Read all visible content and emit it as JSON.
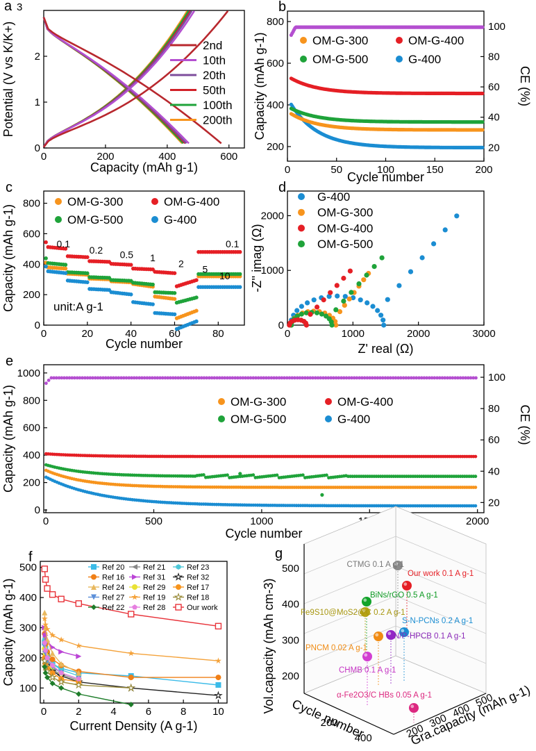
{
  "chart_data": [
    {
      "id": "a",
      "type": "line",
      "panel_label": "a",
      "xlabel": "Capacity (mAh g-1)",
      "ylabel": "Potential (V vs K/K+)",
      "xlim": [
        0,
        650
      ],
      "ylim": [
        0,
        3
      ],
      "xticks": [
        "0",
        "200",
        "400",
        "600"
      ],
      "yticks": [
        "0",
        "1",
        "2",
        "3"
      ],
      "series": [
        {
          "name": "2nd",
          "color": "#b8282e",
          "end_capacity": 575
        },
        {
          "name": "10th",
          "color": "#b44fd0",
          "end_capacity": 470
        },
        {
          "name": "20th",
          "color": "#7d4d9c",
          "end_capacity": 462
        },
        {
          "name": "50th",
          "color": "#d12027",
          "end_capacity": 458
        },
        {
          "name": "100th",
          "color": "#1fa33a",
          "end_capacity": 452
        },
        {
          "name": "200th",
          "color": "#f7941d",
          "end_capacity": 448
        }
      ]
    },
    {
      "id": "b",
      "type": "scatter",
      "panel_label": "b",
      "xlabel": "Cycle number",
      "ylabel": "Capacity (mAh g-1)",
      "y2label": "CE (%)",
      "xlim": [
        0,
        200
      ],
      "ylim": [
        130,
        850
      ],
      "y2lim": [
        11,
        110
      ],
      "xticks": [
        "0",
        "50",
        "100",
        "150",
        "200"
      ],
      "yticks": [
        "200",
        "400",
        "600",
        "800"
      ],
      "y2ticks": [
        "20",
        "40",
        "60",
        "80",
        "100"
      ],
      "series": [
        {
          "name": "OM-G-300",
          "color": "#f7941d",
          "start": 360,
          "end": 280
        },
        {
          "name": "OM-G-400",
          "color": "#e51f25",
          "start": 530,
          "end": 455
        },
        {
          "name": "OM-G-500",
          "color": "#1fa33a",
          "start": 385,
          "end": 318
        },
        {
          "name": "G-400",
          "color": "#1b8dd2",
          "start": 410,
          "end": 195
        },
        {
          "name": "CE",
          "color": "#b44fd0",
          "start": 93,
          "end": 100
        }
      ]
    },
    {
      "id": "c",
      "type": "scatter",
      "panel_label": "c",
      "xlabel": "Cycle number",
      "ylabel": "Capacity (mAh g-1)",
      "xlim": [
        0,
        92
      ],
      "ylim": [
        0,
        880
      ],
      "xticks": [
        "0",
        "20",
        "40",
        "60",
        "80"
      ],
      "yticks": [
        "0",
        "200",
        "400",
        "600",
        "800"
      ],
      "annotation": "unit:A g-1",
      "rates": [
        "0.1",
        "0.2",
        "0.5",
        "1",
        "2",
        "5",
        "10",
        "0.1"
      ],
      "series": [
        {
          "name": "OM-G-300",
          "color": "#f7941d",
          "steps": [
            370,
            330,
            300,
            280,
            250,
            170,
            100,
            320
          ]
        },
        {
          "name": "OM-G-400",
          "color": "#e51f25",
          "steps": [
            500,
            445,
            415,
            395,
            365,
            340,
            300,
            480
          ]
        },
        {
          "name": "OM-G-500",
          "color": "#1fa33a",
          "steps": [
            395,
            340,
            310,
            290,
            265,
            210,
            185,
            335
          ]
        },
        {
          "name": "G-400",
          "color": "#1b8dd2",
          "steps": [
            340,
            280,
            230,
            200,
            135,
            70,
            30,
            250
          ]
        }
      ]
    },
    {
      "id": "d",
      "type": "scatter",
      "panel_label": "d",
      "xlabel": "Z' real (Ω)",
      "ylabel": "-Z'' imag (Ω)",
      "xlim": [
        0,
        3000
      ],
      "ylim": [
        0,
        2450
      ],
      "xticks": [
        "0",
        "1000",
        "2000",
        "3000"
      ],
      "yticks": [
        "0",
        "1000",
        "2000"
      ],
      "series": [
        {
          "name": "G-400",
          "color": "#1b8dd2"
        },
        {
          "name": "OM-G-300",
          "color": "#f7941d"
        },
        {
          "name": "OM-G-400",
          "color": "#e51f25"
        },
        {
          "name": "OM-G-500",
          "color": "#1fa33a"
        }
      ]
    },
    {
      "id": "e",
      "type": "scatter",
      "panel_label": "e",
      "xlabel": "Cycle number",
      "ylabel": "Capacity (mAh g-1)",
      "y2label": "CE (%)",
      "xlim": [
        -10,
        2030
      ],
      "ylim": [
        -20,
        1060
      ],
      "y2lim": [
        13.5,
        108
      ],
      "xticks": [
        "0",
        "500",
        "1000",
        "1500",
        "2000"
      ],
      "yticks": [
        "0",
        "200",
        "400",
        "600",
        "800",
        "1000"
      ],
      "y2ticks": [
        "20",
        "40",
        "60",
        "80",
        "100"
      ],
      "series": [
        {
          "name": "OM-G-300",
          "color": "#f7941d",
          "start": 290,
          "end": 165
        },
        {
          "name": "OM-G-400",
          "color": "#e51f25",
          "start": 410,
          "end": 390
        },
        {
          "name": "OM-G-500",
          "color": "#1fa33a",
          "start": 330,
          "end": 245
        },
        {
          "name": "G-400",
          "color": "#1b8dd2",
          "start": 240,
          "end": 30
        },
        {
          "name": "CE",
          "color": "#b44fd0",
          "start": 96,
          "end": 100
        }
      ]
    },
    {
      "id": "f",
      "type": "line",
      "panel_label": "f",
      "xlabel": "Current Density (A g-1)",
      "ylabel": "Capacity (mAh g-1)",
      "xlim": [
        -0.2,
        10.5
      ],
      "ylim": [
        50,
        520
      ],
      "xticks": [
        "0",
        "2",
        "4",
        "6",
        "8",
        "10"
      ],
      "yticks": [
        "100",
        "200",
        "300",
        "400",
        "500"
      ],
      "series": [
        {
          "name": "Ref 20",
          "color": "#3bbbe8",
          "marker": "square",
          "x": [
            0.05,
            0.1,
            0.2,
            0.5,
            1,
            2,
            5,
            10
          ],
          "y": [
            250,
            230,
            210,
            180,
            165,
            150,
            140,
            110
          ]
        },
        {
          "name": "Ref 21",
          "color": "#888888",
          "marker": "triangle-left",
          "x": [
            0.05,
            0.1,
            0.2,
            0.5,
            1,
            2
          ],
          "y": [
            220,
            200,
            185,
            160,
            145,
            125
          ]
        },
        {
          "name": "Ref 23",
          "color": "#4ec8d8",
          "marker": "hexagon",
          "x": [
            0.05,
            0.1,
            0.2,
            0.5,
            1,
            2
          ],
          "y": [
            260,
            230,
            205,
            180,
            160,
            140
          ]
        },
        {
          "name": "Ref 16",
          "color": "#f07f16",
          "marker": "circle",
          "x": [
            0.05,
            0.1,
            0.2,
            0.5,
            1,
            2,
            5,
            10
          ],
          "y": [
            280,
            245,
            220,
            195,
            175,
            155,
            135,
            135
          ]
        },
        {
          "name": "Ref 31",
          "color": "#bb44d6",
          "marker": "triangle-right",
          "x": [
            0.05,
            0.1,
            0.2,
            0.5,
            1,
            2
          ],
          "y": [
            300,
            275,
            255,
            235,
            220,
            205
          ]
        },
        {
          "name": "Ref 32",
          "color": "#222222",
          "marker": "star-open",
          "x": [
            0.05,
            0.1,
            0.2,
            0.5,
            1,
            2,
            5,
            10
          ],
          "y": [
            210,
            190,
            175,
            155,
            140,
            120,
            100,
            75
          ]
        },
        {
          "name": "Ref 24",
          "color": "#e8b85e",
          "marker": "triangle-up",
          "x": [
            0.05,
            0.1,
            0.2,
            0.5,
            1,
            2
          ],
          "y": [
            350,
            300,
            260,
            215,
            180,
            150
          ]
        },
        {
          "name": "Ref 29",
          "color": "#e9e233",
          "marker": "circle",
          "x": [
            0.05,
            0.1,
            0.2,
            0.5,
            1,
            2
          ],
          "y": [
            230,
            210,
            190,
            170,
            150,
            130
          ]
        },
        {
          "name": "Ref 17",
          "color": "#f7941d",
          "marker": "circle",
          "x": [
            0.05,
            0.1,
            0.2,
            0.5,
            1,
            2
          ],
          "y": [
            200,
            180,
            165,
            150,
            130,
            120
          ]
        },
        {
          "name": "Ref 27",
          "color": "#5b8fd9",
          "marker": "triangle-down",
          "x": [
            0.05,
            0.1,
            0.2,
            0.5,
            1,
            2
          ],
          "y": [
            240,
            215,
            190,
            170,
            150,
            130
          ]
        },
        {
          "name": "Ref 19",
          "color": "#f4a23a",
          "marker": "star",
          "x": [
            0.05,
            0.1,
            0.2,
            0.5,
            1,
            2,
            5,
            10
          ],
          "y": [
            330,
            310,
            295,
            275,
            260,
            240,
            215,
            190
          ]
        },
        {
          "name": "Ref 18",
          "color": "#9a8c3a",
          "marker": "star-open",
          "x": [
            0.05,
            0.1,
            0.2,
            0.5,
            1,
            2,
            5
          ],
          "y": [
            190,
            170,
            155,
            135,
            120,
            110,
            100
          ]
        },
        {
          "name": "Ref 22",
          "color": "#1e7d2a",
          "marker": "diamond",
          "x": [
            0.05,
            0.1,
            0.2,
            0.5,
            1,
            2,
            5
          ],
          "y": [
            170,
            150,
            135,
            115,
            100,
            80,
            45
          ]
        },
        {
          "name": "Ref 28",
          "color": "#e67fe0",
          "marker": "pentagon",
          "x": [
            0.05,
            0.1,
            0.2,
            0.5,
            1,
            2
          ],
          "y": [
            250,
            225,
            200,
            175,
            150,
            130
          ]
        },
        {
          "name": "Our work",
          "color": "#e8333a",
          "marker": "square-open",
          "x": [
            0.05,
            0.1,
            0.2,
            0.5,
            1,
            2,
            5,
            10
          ],
          "y": [
            495,
            460,
            430,
            410,
            395,
            380,
            345,
            305
          ]
        }
      ]
    },
    {
      "id": "g",
      "type": "scatter",
      "panel_label": "g",
      "xlabel": "Cycle number",
      "ylabel": "Vol.capacity (mAh cm-3)",
      "zlabel": "Gra.capacity (mAh g-1)",
      "vol_ticks": [
        "200",
        "300",
        "400",
        "500"
      ],
      "cycle_ticks": [
        "200",
        "400"
      ],
      "gra_ticks": [
        "200",
        "300",
        "400",
        "500"
      ],
      "points": [
        {
          "label": "Our work 0.1 A g-1",
          "color": "#e51f25",
          "label_color": "#e51f25",
          "vol": 525,
          "gra": 480,
          "cycle": 200
        },
        {
          "label": "CTMG 0.1 A g-1",
          "color": "#8a8a8a",
          "label_color": "#777777",
          "vol": 505,
          "gra": 420,
          "cycle": 300
        },
        {
          "label": "BiNs/rGO 0.5 A g-1",
          "color": "#12a32a",
          "label_color": "#0e9a23",
          "vol": 460,
          "gra": 380,
          "cycle": 300
        },
        {
          "label": "Fe9S10@MoS2@C 0.2 A g-1",
          "color": "#b5a213",
          "label_color": "#a89710",
          "vol": 440,
          "gra": 310,
          "cycle": 350
        },
        {
          "label": "S-N-PCNs 0.2 A g-1",
          "color": "#1b8dd2",
          "label_color": "#1b8dd2",
          "vol": 380,
          "gra": 350,
          "cycle": 150
        },
        {
          "label": "PNCM 0.02 A g-1",
          "color": "#f08b13",
          "label_color": "#f08b13",
          "vol": 365,
          "gra": 280,
          "cycle": 280
        },
        {
          "label": "N/P-HPCB 0.1 A g-1",
          "color": "#9326c6",
          "label_color": "#8a2ab8",
          "vol": 370,
          "gra": 330,
          "cycle": 200
        },
        {
          "label": "CHMB 0.1 A g-1",
          "color": "#d23ed1",
          "label_color": "#c535c4",
          "vol": 300,
          "gra": 250,
          "cycle": 300
        },
        {
          "label": "α-Fe2O3/C HBs 0.05 A g-1",
          "color": "#dc2880",
          "label_color": "#dc2880",
          "vol": 150,
          "gra": 370,
          "cycle": 200
        }
      ]
    }
  ]
}
